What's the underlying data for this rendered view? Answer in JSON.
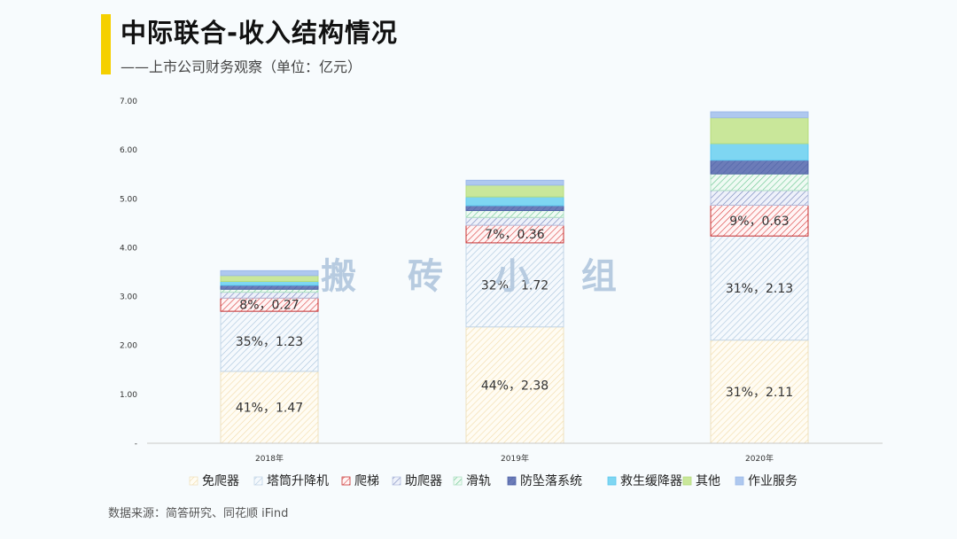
{
  "header": {
    "title": "中际联合-收入结构情况",
    "subtitle": "——上市公司财务观察（单位：亿元）"
  },
  "footer": {
    "source": "数据来源：简答研究、同花顺 iFind"
  },
  "watermark": "搬 砖 小 组",
  "colors": {
    "accent": "#f5d000",
    "axis": "#c8c8c8"
  },
  "chart_data": {
    "type": "bar",
    "stacked": true,
    "categories": [
      "2018年",
      "2019年",
      "2020年"
    ],
    "ylim": [
      0,
      7
    ],
    "yticks": [
      "-",
      "1.00",
      "2.00",
      "3.00",
      "4.00",
      "5.00",
      "6.00",
      "7.00"
    ],
    "grid": false,
    "legend_position": "bottom",
    "series": [
      {
        "name": "免爬器",
        "values": [
          1.47,
          2.38,
          2.11
        ],
        "labels": [
          "41%，1.47",
          "44%，2.38",
          "31%，2.11"
        ],
        "color": "#f2dba8",
        "bg": "#fffcf3",
        "border": "#efe2bf",
        "pattern": "hatch"
      },
      {
        "name": "塔筒升降机",
        "values": [
          1.23,
          1.72,
          2.13
        ],
        "labels": [
          "35%，1.23",
          "32%，1.72",
          "31%，2.13"
        ],
        "color": "#a9c4dc",
        "bg": "#f5f9fd",
        "border": "#c2d5e6",
        "pattern": "hatch"
      },
      {
        "name": "爬梯",
        "values": [
          0.27,
          0.36,
          0.63
        ],
        "labels": [
          "8%，0.27",
          "7%，0.36",
          "9%，0.63"
        ],
        "color": "#d93a3a",
        "bg": "#fff5f5",
        "border": "#c83030",
        "pattern": "hatch"
      },
      {
        "name": "助爬器",
        "values": [
          0.12,
          0.16,
          0.3
        ],
        "labels": [
          "",
          "",
          ""
        ],
        "color": "#6d7fb8",
        "bg": "#eef1fa",
        "border": "#b6c0e0",
        "pattern": "hatch"
      },
      {
        "name": "滑轨",
        "values": [
          0.06,
          0.14,
          0.34
        ],
        "labels": [
          "",
          "",
          ""
        ],
        "color": "#63c48d",
        "bg": "#effaf3",
        "border": "#b0e0c4",
        "pattern": "hatch"
      },
      {
        "name": "防坠落系统",
        "values": [
          0.08,
          0.1,
          0.28
        ],
        "labels": [
          "",
          "",
          ""
        ],
        "color": "#4f64a8",
        "bg": "#6c7cb8",
        "border": "#4f64a8",
        "pattern": "hatch"
      },
      {
        "name": "救生缓降器",
        "values": [
          0.08,
          0.18,
          0.34
        ],
        "labels": [
          "",
          "",
          ""
        ],
        "color": "#5cc8ee",
        "bg": "#7ed6f2",
        "border": "#5cc8ee",
        "pattern": "solid"
      },
      {
        "name": "其他",
        "values": [
          0.12,
          0.24,
          0.53
        ],
        "labels": [
          "",
          "",
          ""
        ],
        "color": "#b5dc7c",
        "bg": "#c9e79a",
        "border": "#b5dc7c",
        "pattern": "solid"
      },
      {
        "name": "作业服务",
        "values": [
          0.1,
          0.1,
          0.12
        ],
        "labels": [
          "",
          "",
          ""
        ],
        "color": "#9bb9e8",
        "bg": "#aec8ef",
        "border": "#9bb9e8",
        "pattern": "solid"
      }
    ]
  }
}
